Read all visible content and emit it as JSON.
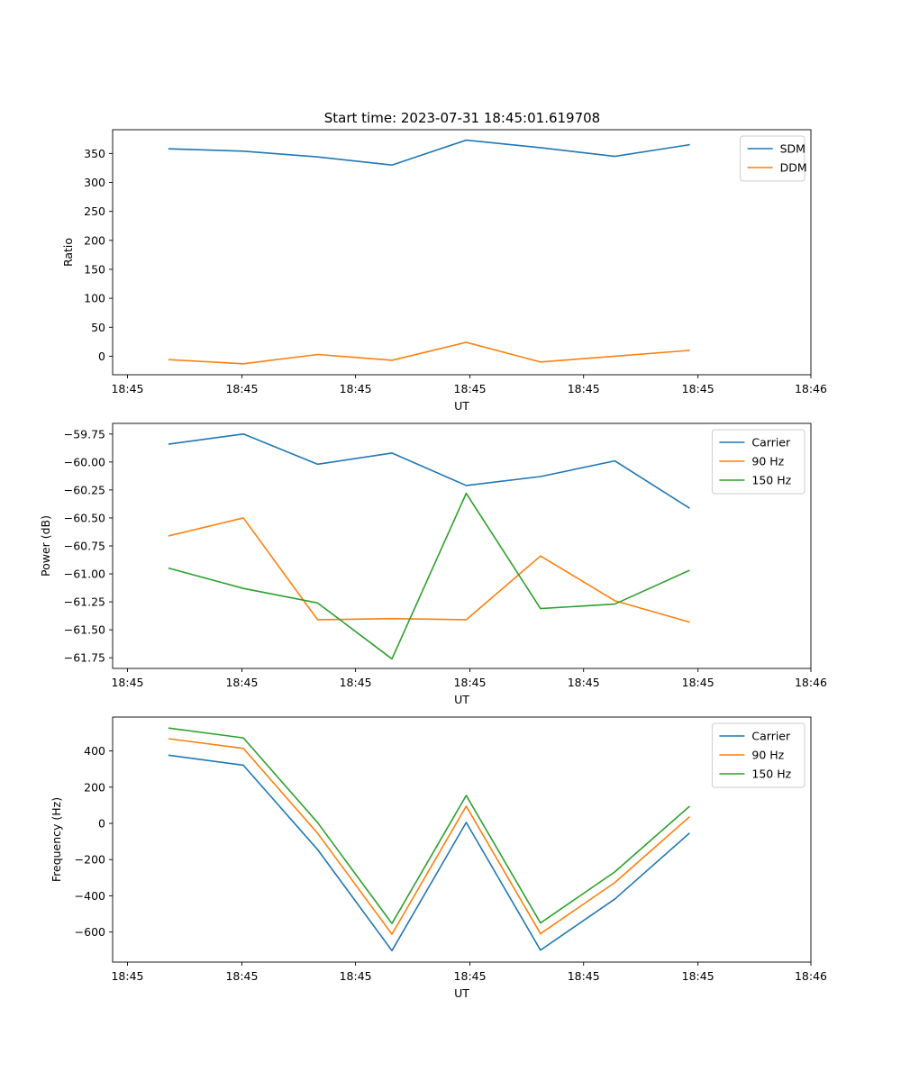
{
  "figure": {
    "title": "Start time: 2023-07-31 18:45:01.619708"
  },
  "chart_data": [
    {
      "type": "line",
      "title": "Start time: 2023-07-31 18:45:01.619708",
      "xlabel": "UT",
      "ylabel": "Ratio",
      "x": [
        1,
        2,
        3,
        4,
        5,
        6,
        7,
        8
      ],
      "xlim": [
        0.24,
        9.64
      ],
      "x_ticks": [
        0.44,
        1.98,
        3.51,
        5.05,
        6.58,
        8.12,
        9.64
      ],
      "x_tick_labels": [
        "18:45",
        "18:45",
        "18:45",
        "18:45",
        "18:45",
        "18:45",
        "18:46"
      ],
      "ylim": [
        -32,
        391
      ],
      "y_ticks": [
        0,
        50,
        100,
        150,
        200,
        250,
        300,
        350
      ],
      "y_tick_labels": [
        "0",
        "50",
        "100",
        "150",
        "200",
        "250",
        "300",
        "350"
      ],
      "legend": "top-right",
      "series": [
        {
          "name": "SDM",
          "color": "#1f77b4",
          "values": [
            358,
            354,
            344,
            330,
            373,
            360,
            345,
            365
          ]
        },
        {
          "name": "DDM",
          "color": "#ff7f0e",
          "values": [
            -6,
            -13,
            3,
            -7,
            24,
            -10,
            0,
            10
          ]
        }
      ]
    },
    {
      "type": "line",
      "title": "",
      "xlabel": "UT",
      "ylabel": "Power (dB)",
      "x": [
        1,
        2,
        3,
        4,
        5,
        6,
        7,
        8
      ],
      "xlim": [
        0.24,
        9.64
      ],
      "x_ticks": [
        0.44,
        1.98,
        3.51,
        5.05,
        6.58,
        8.12,
        9.64
      ],
      "x_tick_labels": [
        "18:45",
        "18:45",
        "18:45",
        "18:45",
        "18:45",
        "18:45",
        "18:46"
      ],
      "ylim": [
        -61.845,
        -59.655
      ],
      "y_ticks": [
        -61.75,
        -61.5,
        -61.25,
        -61.0,
        -60.75,
        -60.5,
        -60.25,
        -60.0,
        -59.75
      ],
      "y_tick_labels": [
        "−61.75",
        "−61.50",
        "−61.25",
        "−61.00",
        "−60.75",
        "−60.50",
        "−60.25",
        "−60.00",
        "−59.75"
      ],
      "legend": "top-right",
      "series": [
        {
          "name": "Carrier",
          "color": "#1f77b4",
          "values": [
            -59.84,
            -59.75,
            -60.02,
            -59.92,
            -60.21,
            -60.13,
            -59.99,
            -60.41
          ]
        },
        {
          "name": "90 Hz",
          "color": "#ff7f0e",
          "values": [
            -60.66,
            -60.5,
            -61.41,
            -61.4,
            -61.41,
            -60.84,
            -61.24,
            -61.43
          ]
        },
        {
          "name": "150 Hz",
          "color": "#2ca02c",
          "values": [
            -60.95,
            -61.13,
            -61.26,
            -61.76,
            -60.28,
            -61.31,
            -61.27,
            -60.97
          ]
        }
      ]
    },
    {
      "type": "line",
      "title": "",
      "xlabel": "UT",
      "ylabel": "Frequency (Hz)",
      "x": [
        1,
        2,
        3,
        4,
        5,
        6,
        7,
        8
      ],
      "xlim": [
        0.24,
        9.64
      ],
      "x_ticks": [
        0.44,
        1.98,
        3.51,
        5.05,
        6.58,
        8.12,
        9.64
      ],
      "x_tick_labels": [
        "18:45",
        "18:45",
        "18:45",
        "18:45",
        "18:45",
        "18:45",
        "18:46"
      ],
      "ylim": [
        -766,
        587
      ],
      "y_ticks": [
        -600,
        -400,
        -200,
        0,
        200,
        400
      ],
      "y_tick_labels": [
        "−600",
        "−400",
        "−200",
        "0",
        "200",
        "400"
      ],
      "legend": "top-right",
      "series": [
        {
          "name": "Carrier",
          "color": "#1f77b4",
          "values": [
            376,
            321,
            -145,
            -703,
            5,
            -700,
            -418,
            -56
          ]
        },
        {
          "name": "90 Hz",
          "color": "#ff7f0e",
          "values": [
            467,
            414,
            -55,
            -612,
            95,
            -609,
            -327,
            34
          ]
        },
        {
          "name": "150 Hz",
          "color": "#2ca02c",
          "values": [
            526,
            472,
            4,
            -553,
            154,
            -550,
            -268,
            92
          ]
        }
      ]
    }
  ]
}
